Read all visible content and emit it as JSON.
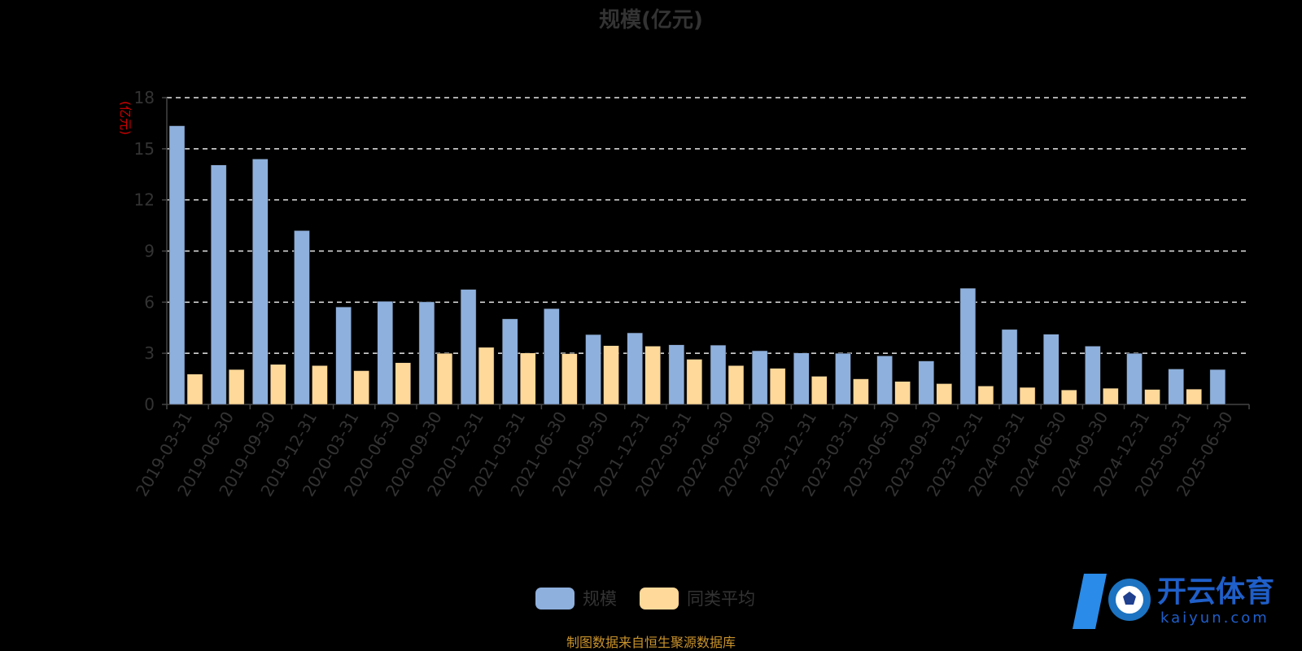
{
  "chart_data": {
    "type": "bar",
    "title": "规模(亿元)",
    "ylabel": "(亿元)",
    "ylim": [
      0,
      18
    ],
    "yticks": [
      0,
      3,
      6,
      9,
      12,
      15,
      18
    ],
    "grid": true,
    "legend_position": "bottom-center",
    "categories": [
      "2019-03-31",
      "2019-06-30",
      "2019-09-30",
      "2019-12-31",
      "2020-03-31",
      "2020-06-30",
      "2020-09-30",
      "2020-12-31",
      "2021-03-31",
      "2021-06-30",
      "2021-09-30",
      "2021-12-31",
      "2022-03-31",
      "2022-06-30",
      "2022-09-30",
      "2022-12-31",
      "2023-03-31",
      "2023-06-30",
      "2023-09-30",
      "2023-12-31",
      "2024-03-31",
      "2024-06-30",
      "2024-09-30",
      "2024-12-31",
      "2025-03-31",
      "2025-06-30"
    ],
    "series": [
      {
        "name": "规模",
        "color": "#8eb0dd",
        "values": [
          16.35,
          14.05,
          14.4,
          10.2,
          5.72,
          6.05,
          6.02,
          6.75,
          5.02,
          5.62,
          4.1,
          4.2,
          3.5,
          3.48,
          3.15,
          3.02,
          3.0,
          2.85,
          2.55,
          6.82,
          4.4,
          4.12,
          3.42,
          3.0,
          2.08,
          2.05
        ]
      },
      {
        "name": "同类平均",
        "color": "#ffd999",
        "values": [
          1.78,
          2.05,
          2.35,
          2.28,
          1.98,
          2.45,
          3.0,
          3.35,
          3.02,
          2.98,
          3.45,
          3.42,
          2.65,
          2.28,
          2.12,
          1.65,
          1.5,
          1.35,
          1.22,
          1.08,
          1.0,
          0.85,
          0.95,
          0.88,
          0.9,
          null
        ]
      }
    ]
  },
  "footer": {
    "source": "制图数据来自恒生聚源数据库"
  },
  "watermark": {
    "name_cn": "开云体育",
    "name_en": "kaiyun.com"
  }
}
